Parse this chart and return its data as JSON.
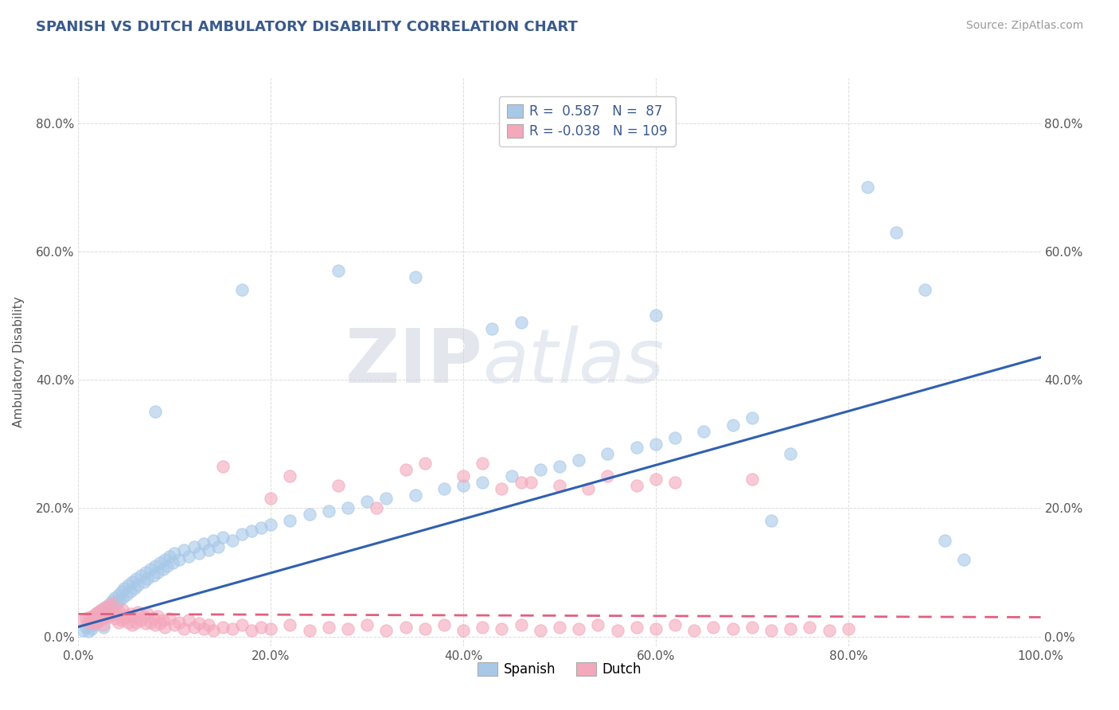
{
  "title": "SPANISH VS DUTCH AMBULATORY DISABILITY CORRELATION CHART",
  "source": "Source: ZipAtlas.com",
  "ylabel": "Ambulatory Disability",
  "xlabel": "",
  "xlim": [
    0.0,
    1.0
  ],
  "ylim": [
    -0.015,
    0.87
  ],
  "yticks": [
    0.0,
    0.2,
    0.4,
    0.6,
    0.8
  ],
  "ytick_labels": [
    "0.0%",
    "20.0%",
    "40.0%",
    "60.0%",
    "80.0%"
  ],
  "xticks": [
    0.0,
    0.2,
    0.4,
    0.6,
    0.8,
    1.0
  ],
  "xtick_labels": [
    "0.0%",
    "20.0%",
    "40.0%",
    "60.0%",
    "80.0%",
    "100.0%"
  ],
  "spanish_color": "#A8C8E8",
  "dutch_color": "#F4A8BC",
  "spanish_line_color": "#3060B0",
  "dutch_line_color": "#E06080",
  "spanish_R": 0.587,
  "spanish_N": 87,
  "dutch_R": -0.038,
  "dutch_N": 109,
  "watermark_zip": "ZIP",
  "watermark_atlas": "atlas",
  "background_color": "#FFFFFF",
  "plot_bg_color": "#FFFFFF",
  "grid_color": "#CCCCCC",
  "title_color": "#3A5A8C",
  "spanish_points": [
    [
      0.005,
      0.01
    ],
    [
      0.008,
      0.015
    ],
    [
      0.01,
      0.008
    ],
    [
      0.012,
      0.02
    ],
    [
      0.014,
      0.012
    ],
    [
      0.015,
      0.025
    ],
    [
      0.016,
      0.018
    ],
    [
      0.018,
      0.03
    ],
    [
      0.019,
      0.022
    ],
    [
      0.02,
      0.035
    ],
    [
      0.022,
      0.028
    ],
    [
      0.024,
      0.04
    ],
    [
      0.025,
      0.032
    ],
    [
      0.026,
      0.015
    ],
    [
      0.028,
      0.045
    ],
    [
      0.03,
      0.038
    ],
    [
      0.032,
      0.05
    ],
    [
      0.033,
      0.042
    ],
    [
      0.035,
      0.055
    ],
    [
      0.036,
      0.048
    ],
    [
      0.038,
      0.06
    ],
    [
      0.04,
      0.052
    ],
    [
      0.042,
      0.065
    ],
    [
      0.043,
      0.056
    ],
    [
      0.045,
      0.07
    ],
    [
      0.046,
      0.06
    ],
    [
      0.048,
      0.075
    ],
    [
      0.05,
      0.065
    ],
    [
      0.052,
      0.08
    ],
    [
      0.054,
      0.07
    ],
    [
      0.056,
      0.085
    ],
    [
      0.058,
      0.075
    ],
    [
      0.06,
      0.09
    ],
    [
      0.062,
      0.08
    ],
    [
      0.065,
      0.095
    ],
    [
      0.068,
      0.085
    ],
    [
      0.07,
      0.1
    ],
    [
      0.072,
      0.09
    ],
    [
      0.075,
      0.105
    ],
    [
      0.078,
      0.095
    ],
    [
      0.08,
      0.11
    ],
    [
      0.082,
      0.1
    ],
    [
      0.085,
      0.115
    ],
    [
      0.088,
      0.105
    ],
    [
      0.09,
      0.12
    ],
    [
      0.092,
      0.11
    ],
    [
      0.095,
      0.125
    ],
    [
      0.098,
      0.115
    ],
    [
      0.1,
      0.13
    ],
    [
      0.105,
      0.12
    ],
    [
      0.11,
      0.135
    ],
    [
      0.115,
      0.125
    ],
    [
      0.12,
      0.14
    ],
    [
      0.125,
      0.13
    ],
    [
      0.13,
      0.145
    ],
    [
      0.135,
      0.135
    ],
    [
      0.14,
      0.15
    ],
    [
      0.145,
      0.14
    ],
    [
      0.15,
      0.155
    ],
    [
      0.16,
      0.15
    ],
    [
      0.17,
      0.16
    ],
    [
      0.18,
      0.165
    ],
    [
      0.19,
      0.17
    ],
    [
      0.2,
      0.175
    ],
    [
      0.22,
      0.18
    ],
    [
      0.24,
      0.19
    ],
    [
      0.26,
      0.195
    ],
    [
      0.28,
      0.2
    ],
    [
      0.3,
      0.21
    ],
    [
      0.32,
      0.215
    ],
    [
      0.35,
      0.22
    ],
    [
      0.38,
      0.23
    ],
    [
      0.4,
      0.235
    ],
    [
      0.42,
      0.24
    ],
    [
      0.45,
      0.25
    ],
    [
      0.48,
      0.26
    ],
    [
      0.5,
      0.265
    ],
    [
      0.52,
      0.275
    ],
    [
      0.55,
      0.285
    ],
    [
      0.58,
      0.295
    ],
    [
      0.6,
      0.3
    ],
    [
      0.62,
      0.31
    ],
    [
      0.65,
      0.32
    ],
    [
      0.68,
      0.33
    ],
    [
      0.7,
      0.34
    ],
    [
      0.72,
      0.18
    ],
    [
      0.74,
      0.285
    ]
  ],
  "spanish_outliers": [
    [
      0.08,
      0.35
    ],
    [
      0.17,
      0.54
    ],
    [
      0.27,
      0.57
    ],
    [
      0.35,
      0.56
    ],
    [
      0.43,
      0.48
    ],
    [
      0.46,
      0.49
    ],
    [
      0.6,
      0.5
    ],
    [
      0.82,
      0.7
    ],
    [
      0.85,
      0.63
    ],
    [
      0.88,
      0.54
    ],
    [
      0.9,
      0.15
    ],
    [
      0.92,
      0.12
    ]
  ],
  "dutch_points_main": [
    [
      0.005,
      0.025
    ],
    [
      0.008,
      0.028
    ],
    [
      0.01,
      0.022
    ],
    [
      0.012,
      0.03
    ],
    [
      0.014,
      0.025
    ],
    [
      0.015,
      0.032
    ],
    [
      0.016,
      0.02
    ],
    [
      0.018,
      0.035
    ],
    [
      0.019,
      0.022
    ],
    [
      0.02,
      0.038
    ],
    [
      0.022,
      0.025
    ],
    [
      0.024,
      0.042
    ],
    [
      0.025,
      0.028
    ],
    [
      0.026,
      0.018
    ],
    [
      0.028,
      0.045
    ],
    [
      0.03,
      0.03
    ],
    [
      0.032,
      0.048
    ],
    [
      0.033,
      0.032
    ],
    [
      0.035,
      0.052
    ],
    [
      0.036,
      0.035
    ],
    [
      0.038,
      0.028
    ],
    [
      0.04,
      0.035
    ],
    [
      0.042,
      0.022
    ],
    [
      0.043,
      0.038
    ],
    [
      0.045,
      0.025
    ],
    [
      0.046,
      0.042
    ],
    [
      0.048,
      0.028
    ],
    [
      0.05,
      0.03
    ],
    [
      0.052,
      0.022
    ],
    [
      0.054,
      0.035
    ],
    [
      0.056,
      0.018
    ],
    [
      0.058,
      0.03
    ],
    [
      0.06,
      0.022
    ],
    [
      0.062,
      0.038
    ],
    [
      0.065,
      0.025
    ],
    [
      0.068,
      0.032
    ],
    [
      0.07,
      0.02
    ],
    [
      0.072,
      0.035
    ],
    [
      0.075,
      0.022
    ],
    [
      0.078,
      0.028
    ],
    [
      0.08,
      0.018
    ],
    [
      0.082,
      0.032
    ],
    [
      0.085,
      0.02
    ],
    [
      0.088,
      0.025
    ],
    [
      0.09,
      0.015
    ],
    [
      0.095,
      0.028
    ],
    [
      0.1,
      0.018
    ],
    [
      0.105,
      0.022
    ],
    [
      0.11,
      0.012
    ],
    [
      0.115,
      0.025
    ],
    [
      0.12,
      0.015
    ],
    [
      0.125,
      0.02
    ],
    [
      0.13,
      0.012
    ],
    [
      0.135,
      0.018
    ],
    [
      0.14,
      0.01
    ],
    [
      0.15,
      0.015
    ],
    [
      0.16,
      0.012
    ],
    [
      0.17,
      0.018
    ],
    [
      0.18,
      0.01
    ],
    [
      0.19,
      0.015
    ],
    [
      0.2,
      0.012
    ],
    [
      0.22,
      0.018
    ],
    [
      0.24,
      0.01
    ],
    [
      0.26,
      0.015
    ],
    [
      0.28,
      0.012
    ],
    [
      0.3,
      0.018
    ],
    [
      0.32,
      0.01
    ],
    [
      0.34,
      0.015
    ],
    [
      0.36,
      0.012
    ],
    [
      0.38,
      0.018
    ],
    [
      0.4,
      0.01
    ],
    [
      0.42,
      0.015
    ],
    [
      0.44,
      0.012
    ],
    [
      0.46,
      0.018
    ],
    [
      0.48,
      0.01
    ],
    [
      0.5,
      0.015
    ],
    [
      0.52,
      0.012
    ],
    [
      0.54,
      0.018
    ],
    [
      0.56,
      0.01
    ],
    [
      0.58,
      0.015
    ],
    [
      0.6,
      0.012
    ],
    [
      0.62,
      0.018
    ],
    [
      0.64,
      0.01
    ],
    [
      0.66,
      0.015
    ],
    [
      0.68,
      0.012
    ],
    [
      0.7,
      0.015
    ],
    [
      0.72,
      0.01
    ],
    [
      0.74,
      0.012
    ],
    [
      0.76,
      0.015
    ],
    [
      0.78,
      0.01
    ],
    [
      0.8,
      0.012
    ]
  ],
  "dutch_outliers": [
    [
      0.15,
      0.265
    ],
    [
      0.2,
      0.215
    ],
    [
      0.22,
      0.25
    ],
    [
      0.27,
      0.235
    ],
    [
      0.31,
      0.2
    ],
    [
      0.34,
      0.26
    ],
    [
      0.36,
      0.27
    ],
    [
      0.4,
      0.25
    ],
    [
      0.42,
      0.27
    ],
    [
      0.44,
      0.23
    ],
    [
      0.46,
      0.24
    ],
    [
      0.47,
      0.24
    ],
    [
      0.5,
      0.235
    ],
    [
      0.53,
      0.23
    ],
    [
      0.55,
      0.25
    ],
    [
      0.58,
      0.235
    ],
    [
      0.6,
      0.245
    ],
    [
      0.62,
      0.24
    ],
    [
      0.7,
      0.245
    ]
  ],
  "spanish_line_x": [
    0.0,
    1.0
  ],
  "spanish_line_y": [
    0.015,
    0.435
  ],
  "dutch_line_x": [
    0.0,
    1.0
  ],
  "dutch_line_y": [
    0.035,
    0.03
  ]
}
